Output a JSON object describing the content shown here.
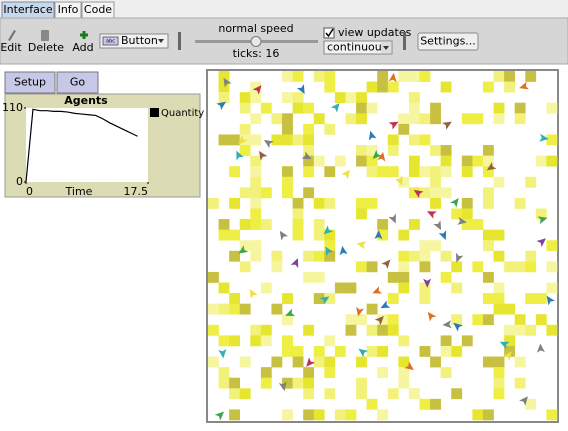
{
  "tabs": [
    "Interface",
    "Info",
    "Code"
  ],
  "toolbar": {
    "edit": "Edit",
    "delete": "Delete",
    "add": "Add",
    "widget_icon": "abc",
    "widget_type": "Button",
    "speed": "normal speed",
    "ticks": "ticks: 16",
    "view_updates": "view updates",
    "update_mode": "continuous",
    "settings": "Settings..."
  },
  "buttons": [
    "Setup",
    "Go"
  ],
  "chart_data": {
    "type": "line",
    "title": "Agents",
    "xlabel": "Time",
    "x": [
      0,
      1,
      2,
      3,
      4,
      5,
      6,
      7,
      8,
      9,
      10,
      11,
      12,
      13,
      14,
      15,
      16
    ],
    "series": [
      {
        "name": "Quantity",
        "color": "#000000",
        "values": [
          0,
          108,
          106,
          106,
          105,
          105,
          104,
          102,
          101,
          100,
          99,
          94,
          88,
          83,
          78,
          73,
          68
        ]
      }
    ],
    "xlim": [
      0,
      17.5
    ],
    "ylim": [
      0,
      110
    ],
    "xticks": [
      0,
      17.5
    ],
    "yticks": [
      0,
      110
    ],
    "legend": "right"
  }
}
